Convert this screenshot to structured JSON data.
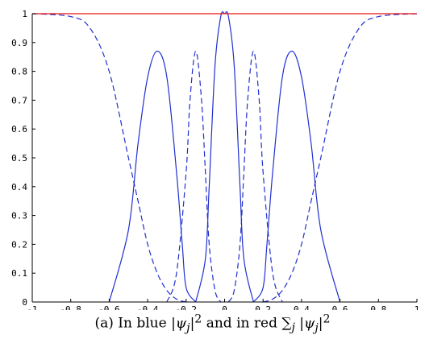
{
  "chart_data": {
    "type": "line",
    "xlim": [
      -1,
      1
    ],
    "ylim": [
      0,
      1
    ],
    "grid": false,
    "x_ticks": [
      "-1",
      "-0.8",
      "-0.6",
      "-0.4",
      "-0.2",
      "0",
      "0.2",
      "0.4",
      "0.6",
      "0.8",
      "1"
    ],
    "y_ticks": [
      "0",
      "0.1",
      "0.2",
      "0.3",
      "0.4",
      "0.5",
      "0.6",
      "0.7",
      "0.8",
      "0.9",
      "1"
    ],
    "series": [
      {
        "color": "#2030d0",
        "style": "solid",
        "x": [
          -0.6,
          -0.5,
          -0.45,
          -0.4,
          -0.35,
          -0.3,
          -0.25,
          -0.22,
          -0.2,
          -0.15
        ],
        "y": [
          0.0,
          0.25,
          0.55,
          0.78,
          0.87,
          0.78,
          0.45,
          0.2,
          0.05,
          0.0
        ]
      },
      {
        "color": "#2030d0",
        "style": "solid",
        "x": [
          0.15,
          0.2,
          0.22,
          0.25,
          0.3,
          0.35,
          0.4,
          0.45,
          0.5,
          0.6
        ],
        "y": [
          0.0,
          0.05,
          0.2,
          0.45,
          0.78,
          0.87,
          0.78,
          0.55,
          0.25,
          0.0
        ]
      },
      {
        "color": "#2030d0",
        "style": "solid",
        "x": [
          -0.15,
          -0.1,
          -0.08,
          -0.05,
          -0.02,
          0.0,
          0.02,
          0.05,
          0.08,
          0.1,
          0.15
        ],
        "y": [
          0.0,
          0.15,
          0.4,
          0.82,
          0.99,
          1.0,
          0.99,
          0.82,
          0.4,
          0.15,
          0.0
        ]
      },
      {
        "color": "#2030d0",
        "style": "dashed",
        "x": [
          -1.0,
          -0.8,
          -0.7,
          -0.6,
          -0.5,
          -0.45,
          -0.4,
          -0.35,
          -0.3,
          -0.25,
          -0.2
        ],
        "y": [
          1.0,
          0.99,
          0.95,
          0.8,
          0.5,
          0.35,
          0.2,
          0.1,
          0.04,
          0.01,
          0.0
        ]
      },
      {
        "color": "#2030d0",
        "style": "dashed",
        "x": [
          0.2,
          0.25,
          0.3,
          0.35,
          0.4,
          0.45,
          0.5,
          0.6,
          0.7,
          0.8,
          1.0
        ],
        "y": [
          0.0,
          0.01,
          0.04,
          0.1,
          0.2,
          0.35,
          0.5,
          0.8,
          0.95,
          0.99,
          1.0
        ]
      },
      {
        "color": "#2030d0",
        "style": "dashed",
        "x": [
          -0.3,
          -0.25,
          -0.2,
          -0.18,
          -0.15,
          -0.12,
          -0.1,
          -0.08,
          -0.05,
          -0.02
        ],
        "y": [
          0.0,
          0.1,
          0.45,
          0.7,
          0.87,
          0.7,
          0.45,
          0.2,
          0.04,
          0.0
        ]
      },
      {
        "color": "#2030d0",
        "style": "dashed",
        "x": [
          0.02,
          0.05,
          0.08,
          0.1,
          0.12,
          0.15,
          0.18,
          0.2,
          0.25,
          0.3
        ],
        "y": [
          0.0,
          0.04,
          0.2,
          0.45,
          0.7,
          0.87,
          0.7,
          0.45,
          0.1,
          0.0
        ]
      },
      {
        "color": "#e81010",
        "style": "solid",
        "x": [
          -1.0,
          1.0
        ],
        "y": [
          1.0,
          1.0
        ]
      }
    ]
  },
  "caption": {
    "prefix": "(a) In blue ",
    "middle": " and in red ",
    "sum_symbol": "∑",
    "sum_index": "j",
    "psi": "ψ",
    "psi_sub": "j",
    "power": "2"
  },
  "colors": {
    "blue": "#2030d0",
    "red": "#e81010",
    "axis": "#000000"
  }
}
